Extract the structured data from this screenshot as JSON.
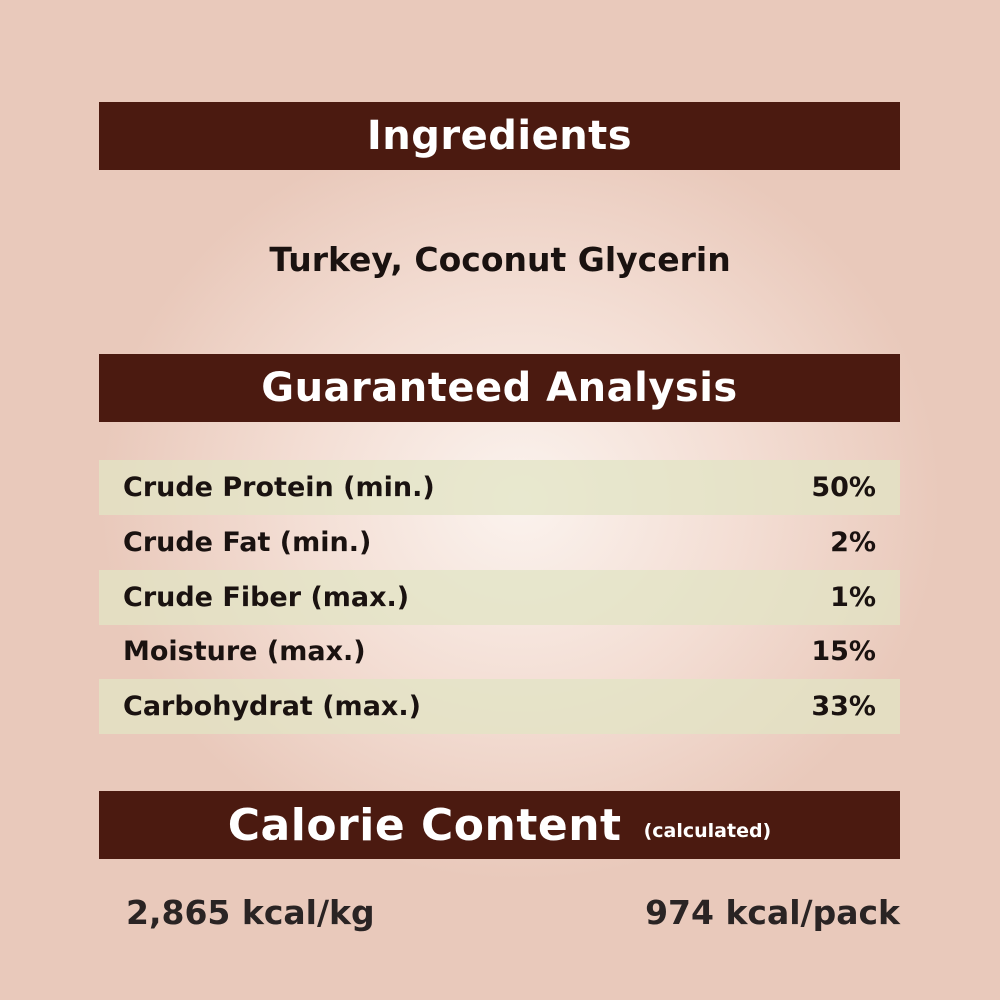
{
  "ingredients": {
    "heading": "Ingredients",
    "text": "Turkey, Coconut Glycerin"
  },
  "analysis": {
    "heading": "Guaranteed Analysis",
    "rows": [
      {
        "label": "Crude Protein (min.)",
        "value": "50%"
      },
      {
        "label": "Crude Fat (min.)",
        "value": "2%"
      },
      {
        "label": "Crude Fiber (max.)",
        "value": "1%"
      },
      {
        "label": "Moisture (max.)",
        "value": "15%"
      },
      {
        "label": "Carbohydrat (max.)",
        "value": "33%"
      }
    ]
  },
  "calorie": {
    "heading": "Calorie Content",
    "subheading": "(calculated)",
    "per_kg": "2,865 kcal/kg",
    "per_pack": "974 kcal/pack"
  },
  "colors": {
    "header_bar": "#4b1a10",
    "stripe": "#e2e4c4",
    "background": "#f3ddd3"
  }
}
